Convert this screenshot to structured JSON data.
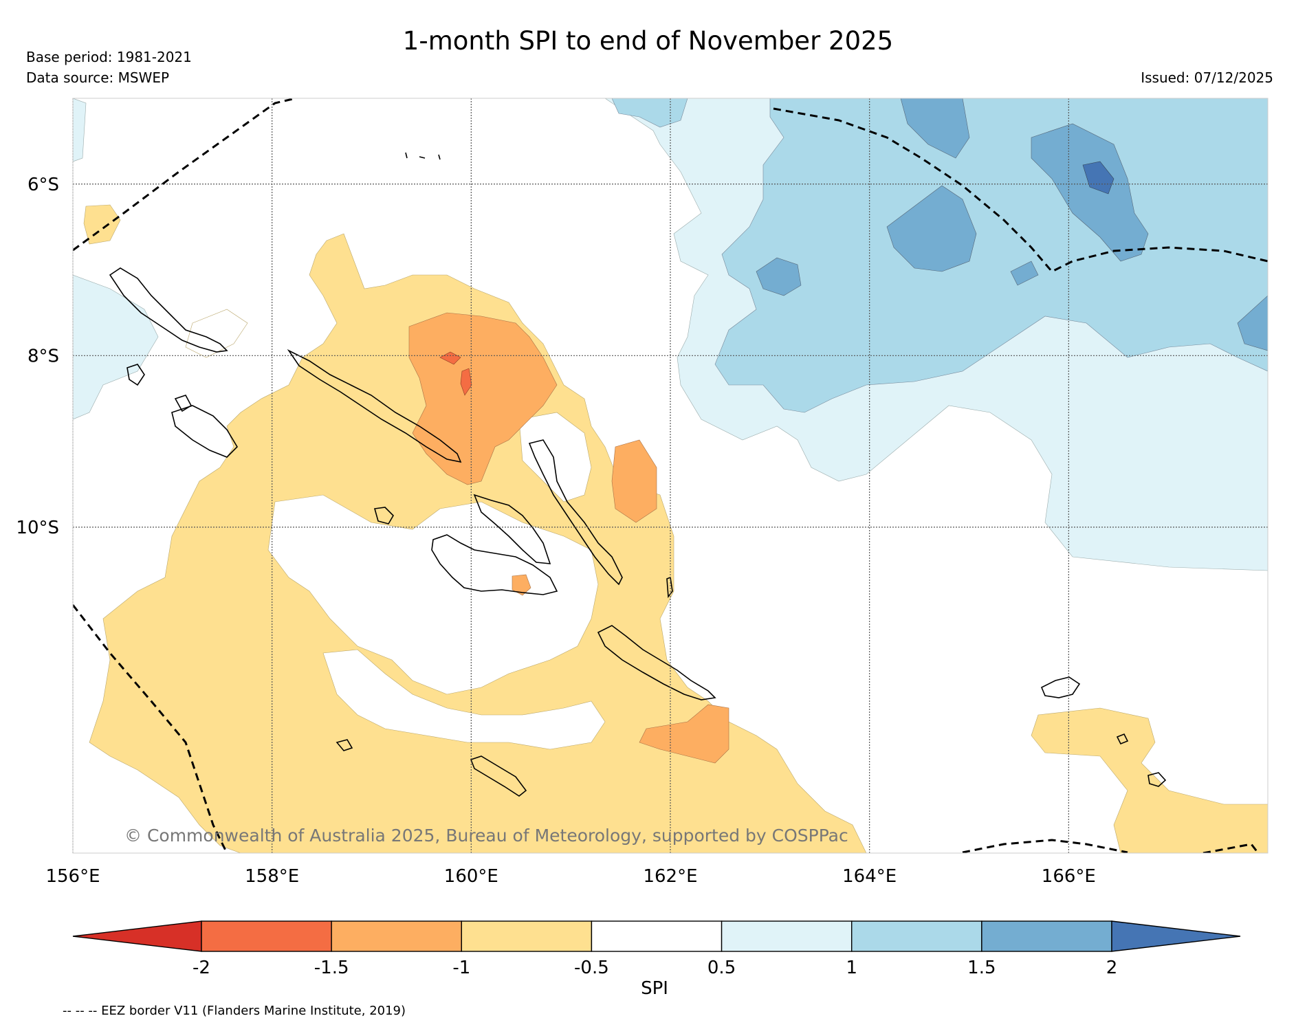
{
  "title": "1-month SPI to end of November 2025",
  "base_period": "Base period: 1981-2021",
  "data_source": "Data source: MSWEP",
  "issued": "Issued: 07/12/2025",
  "copyright": "© Commonwealth of Australia 2025, Bureau of Meteorology, supported by COSPPac",
  "eez_note": "-- -- -- EEZ border V11 (Flanders Marine Institute, 2019)",
  "map": {
    "lon_range": [
      156,
      168
    ],
    "lat_range": [
      -13.8,
      -5.0
    ],
    "lat_ticks": [
      {
        "value": -6,
        "label": "6°S"
      },
      {
        "value": -8,
        "label": "8°S"
      },
      {
        "value": -10,
        "label": "10°S"
      }
    ],
    "lon_ticks": [
      {
        "value": 156,
        "label": "156°E"
      },
      {
        "value": 158,
        "label": "158°E"
      },
      {
        "value": 160,
        "label": "160°E"
      },
      {
        "value": 162,
        "label": "162°E"
      },
      {
        "value": 164,
        "label": "164°E"
      },
      {
        "value": 166,
        "label": "166°E"
      }
    ]
  },
  "colorbar": {
    "title": "SPI",
    "ticks": [
      "-2",
      "-1.5",
      "-1",
      "-0.5",
      "0.5",
      "1",
      "1.5",
      "2"
    ],
    "bins": [
      {
        "range": "< -2",
        "color": "#d73027"
      },
      {
        "range": "-2 to -1.5",
        "color": "#f46d43"
      },
      {
        "range": "-1.5 to -1",
        "color": "#fdae61"
      },
      {
        "range": "-1 to -0.5",
        "color": "#fee090"
      },
      {
        "range": "-0.5 to 0.5",
        "color": "#ffffff"
      },
      {
        "range": "0.5 to 1",
        "color": "#e0f3f8"
      },
      {
        "range": "1 to 1.5",
        "color": "#abd9e9"
      },
      {
        "range": "1.5 to 2",
        "color": "#74add1"
      },
      {
        "range": "> 2",
        "color": "#4575b4"
      }
    ]
  }
}
